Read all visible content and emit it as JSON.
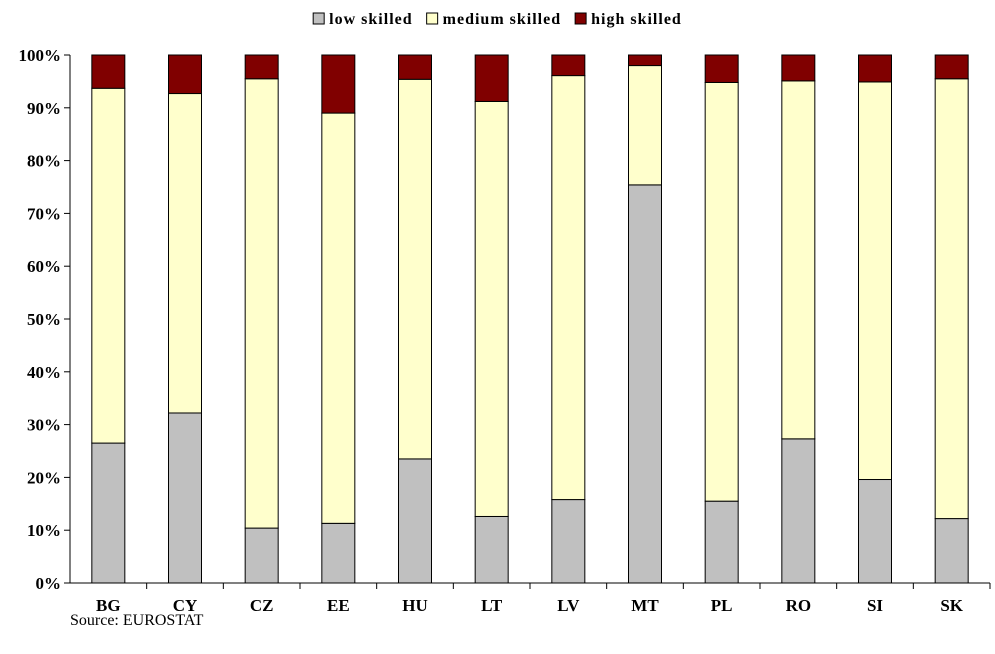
{
  "chart_data": {
    "type": "bar",
    "stacked": true,
    "categories": [
      "BG",
      "CY",
      "CZ",
      "EE",
      "HU",
      "LT",
      "LV",
      "MT",
      "PL",
      "RO",
      "SI",
      "SK"
    ],
    "series": [
      {
        "name": "low skilled",
        "color": "#c0c0c0",
        "values": [
          26.5,
          32.2,
          10.4,
          11.3,
          23.5,
          12.6,
          15.8,
          75.4,
          15.5,
          27.3,
          19.6,
          12.2
        ]
      },
      {
        "name": "medium skilled",
        "color": "#ffffcc",
        "values": [
          67.2,
          60.5,
          85.1,
          77.7,
          71.9,
          78.6,
          80.3,
          22.6,
          79.3,
          67.8,
          75.3,
          83.3
        ]
      },
      {
        "name": "high skilled",
        "color": "#800000",
        "values": [
          6.3,
          7.3,
          4.5,
          11.0,
          4.6,
          8.8,
          3.9,
          2.0,
          5.2,
          4.9,
          5.1,
          4.5
        ]
      }
    ],
    "yticks": [
      "0%",
      "10%",
      "20%",
      "30%",
      "40%",
      "50%",
      "60%",
      "70%",
      "80%",
      "90%",
      "100%"
    ],
    "ylim": [
      0,
      100
    ],
    "legend_position": "top-center",
    "grid": false
  },
  "source_note": "Source: EUROSTAT"
}
